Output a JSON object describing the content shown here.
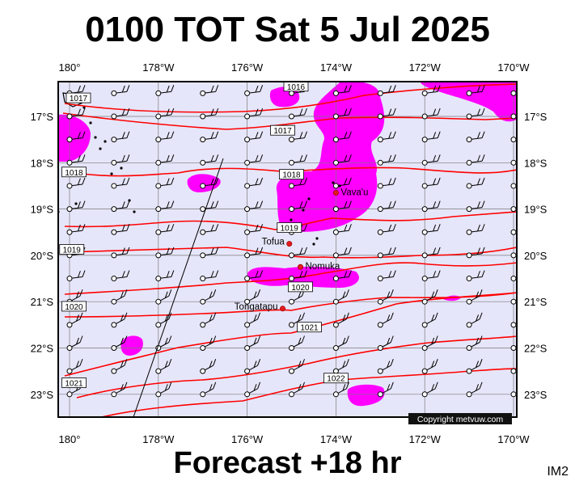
{
  "title": "0100 TOT Sat 5 Jul 2025",
  "footer": "Forecast +18 hr",
  "corner_tag": "IM2",
  "copyright": "Copyright metvuw.com",
  "colors": {
    "isobar": "#ff0000",
    "precip": "#ff00ff",
    "ocean": "#e6e6fa",
    "city": "#e41a1c"
  },
  "lon_labels": [
    "180°",
    "178°W",
    "176°W",
    "174°W",
    "172°W",
    "170°W"
  ],
  "lat_labels": [
    "17°S",
    "18°S",
    "19°S",
    "20°S",
    "21°S",
    "22°S",
    "23°S"
  ],
  "places": [
    {
      "name": "Vava'u",
      "lon": -174.0,
      "lat": -18.65
    },
    {
      "name": "Tofua",
      "lon": -175.05,
      "lat": -19.75
    },
    {
      "name": "Nomuka",
      "lon": -174.8,
      "lat": -20.25
    },
    {
      "name": "Tongatapu",
      "lon": -175.2,
      "lat": -21.15
    }
  ],
  "isobars": [
    {
      "label": "1016",
      "lon": -174.9,
      "lat": -16.35
    },
    {
      "label": "1017",
      "lon": -175.2,
      "lat": -17.3
    },
    {
      "label": "1018",
      "lon": -175.0,
      "lat": -18.25
    },
    {
      "label": "1019",
      "lon": -175.05,
      "lat": -19.4
    },
    {
      "label": "1020",
      "lon": -174.8,
      "lat": -20.68
    },
    {
      "label": "1021",
      "lon": -174.6,
      "lat": -21.55
    },
    {
      "label": "1022",
      "lon": -174.0,
      "lat": -22.65
    },
    {
      "label": "1017",
      "lon": -179.8,
      "lat": -16.6
    },
    {
      "label": "1018",
      "lon": -179.9,
      "lat": -18.2
    },
    {
      "label": "1019",
      "lon": -179.95,
      "lat": -19.87
    },
    {
      "label": "1020",
      "lon": -179.9,
      "lat": -21.1
    },
    {
      "label": "1021",
      "lon": -179.9,
      "lat": -22.75
    }
  ]
}
